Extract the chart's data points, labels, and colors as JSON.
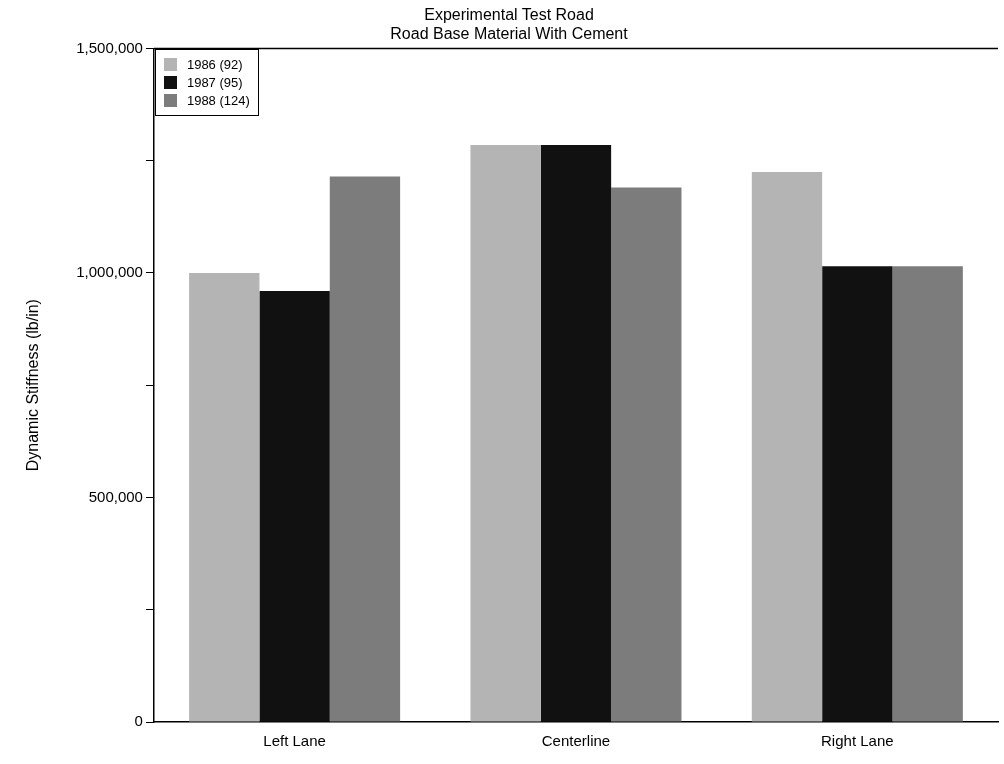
{
  "chart_data": {
    "type": "bar",
    "title": "Experimental Test Road\nRoad Base Material With Cement",
    "ylabel": "Dynamic Stiffness (lb/in)",
    "categories": [
      "Left Lane",
      "Centerline",
      "Right Lane"
    ],
    "series": [
      {
        "name": "1986 (92)",
        "color": "#b4b4b4",
        "values": [
          1000000,
          1285000,
          1225000
        ]
      },
      {
        "name": "1987 (95)",
        "color": "#111111",
        "values": [
          960000,
          1285000,
          1015000
        ]
      },
      {
        "name": "1988 (124)",
        "color": "#7c7c7c",
        "values": [
          1215000,
          1190000,
          1015000
        ]
      }
    ],
    "ylim": [
      0,
      1500000
    ],
    "yticks": [
      0,
      {
        "value": 250000,
        "label": null
      },
      {
        "value": 500000,
        "label": "500,000"
      },
      {
        "value": 750000,
        "label": null
      },
      {
        "value": 1000000,
        "label": "1,000,000"
      },
      {
        "value": 1250000,
        "label": null
      },
      {
        "value": 1500000,
        "label": "1,500,000"
      }
    ],
    "grid": false,
    "legend": "top left"
  }
}
